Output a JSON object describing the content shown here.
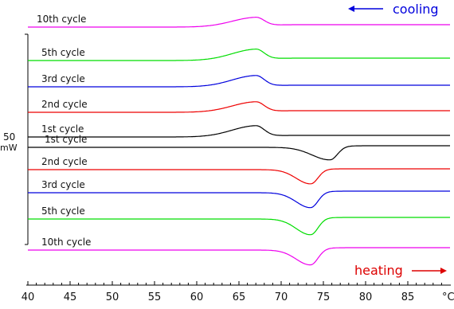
{
  "chart_data": {
    "type": "line",
    "x_unit": "°C",
    "xlim": [
      40,
      90
    ],
    "x_ticks": [
      40,
      45,
      50,
      55,
      60,
      65,
      70,
      75,
      80,
      85
    ],
    "scale_bar": {
      "value": "50",
      "unit": "mW"
    },
    "direction_labels": {
      "cooling": {
        "text": "cooling",
        "color": "#0000dd"
      },
      "heating": {
        "text": "heating",
        "color": "#dd0000"
      }
    },
    "grid": false,
    "legend": "none",
    "cooling_curves": [
      {
        "label": "10th cycle",
        "color": "#ee00ee",
        "baseline_left": 34,
        "baseline_right": 31,
        "peak_x": 67.0,
        "peak_height": 12,
        "width_left": 4.0,
        "width_right": 1.4
      },
      {
        "label": "5th cycle",
        "color": "#00dd00",
        "baseline_left": 76,
        "baseline_right": 73,
        "peak_x": 67.0,
        "peak_height": 14,
        "width_left": 4.0,
        "width_right": 1.4
      },
      {
        "label": "3rd cycle",
        "color": "#0000dd",
        "baseline_left": 109,
        "baseline_right": 107,
        "peak_x": 67.0,
        "peak_height": 14,
        "width_left": 4.0,
        "width_right": 1.4
      },
      {
        "label": "2nd cycle",
        "color": "#ee0000",
        "baseline_left": 141,
        "baseline_right": 139,
        "peak_x": 67.0,
        "peak_height": 13,
        "width_left": 4.0,
        "width_right": 1.4
      },
      {
        "label": "1st cycle",
        "color": "#000000",
        "baseline_left": 172,
        "baseline_right": 170,
        "peak_x": 67.0,
        "peak_height": 14,
        "width_left": 4.0,
        "width_right": 1.4
      }
    ],
    "heating_curves": [
      {
        "label": "1st cycle",
        "color": "#000000",
        "baseline_left": 185,
        "baseline_right": 183,
        "peak_x": 75.8,
        "peak_height": 16,
        "width_left": 3.0,
        "width_right": 1.2
      },
      {
        "label": "2nd cycle",
        "color": "#ee0000",
        "baseline_left": 213,
        "baseline_right": 212,
        "peak_x": 73.5,
        "peak_height": 18,
        "width_left": 2.4,
        "width_right": 1.2
      },
      {
        "label": "3rd cycle",
        "color": "#0000dd",
        "baseline_left": 242,
        "baseline_right": 240,
        "peak_x": 73.5,
        "peak_height": 19,
        "width_left": 2.4,
        "width_right": 1.2
      },
      {
        "label": "5th cycle",
        "color": "#00dd00",
        "baseline_left": 275,
        "baseline_right": 273,
        "peak_x": 73.5,
        "peak_height": 20,
        "width_left": 2.4,
        "width_right": 1.2
      },
      {
        "label": "10th cycle",
        "color": "#ee00ee",
        "baseline_left": 314,
        "baseline_right": 311,
        "peak_x": 73.5,
        "peak_height": 19,
        "width_left": 2.4,
        "width_right": 1.2
      }
    ]
  }
}
